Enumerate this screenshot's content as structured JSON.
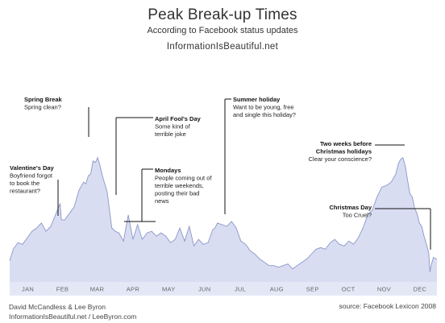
{
  "header": {
    "title": "Peak Break-up Times",
    "subtitle": "According to Facebook status updates",
    "site": "InformationIsBeautiful.net"
  },
  "footer": {
    "authors": "David McCandless & Lee Byron",
    "links": "InformationIsBeautiful.net / LeeByron.com",
    "source": "source: Facebook Lexicon 2008"
  },
  "colors": {
    "area_fill": "#d8ddf2",
    "area_stroke": "#8c96c8",
    "axis_band": "#e4e8f6",
    "annotation_line": "#111111"
  },
  "chart_data": {
    "type": "area",
    "title": "Peak Break-up Times",
    "subtitle": "According to Facebook status updates",
    "xlabel": "",
    "ylabel": "",
    "x_unit": "day of year",
    "xlim": [
      1,
      365
    ],
    "ylim": [
      0,
      100
    ],
    "y_axis_labels_shown": false,
    "grid": false,
    "month_labels": [
      "JAN",
      "FEB",
      "MAR",
      "APR",
      "MAY",
      "JUN",
      "JUL",
      "AUG",
      "SEP",
      "OCT",
      "NOV",
      "DEC"
    ],
    "series": [
      {
        "x": [
          1,
          4,
          8,
          12,
          16,
          20,
          24,
          28,
          32,
          36,
          40,
          44,
          45,
          48,
          52,
          56,
          60,
          64,
          66,
          68,
          70,
          72,
          74,
          76,
          78,
          80,
          84,
          88,
          91,
          94,
          98,
          102,
          106,
          110,
          114,
          118,
          122,
          126,
          130,
          134,
          138,
          142,
          146,
          150,
          154,
          158,
          162,
          166,
          170,
          174,
          176,
          178,
          182,
          186,
          190,
          194,
          198,
          202,
          206,
          210,
          214,
          218,
          222,
          226,
          230,
          234,
          238,
          242,
          246,
          250,
          254,
          258,
          262,
          266,
          270,
          274,
          278,
          282,
          286,
          290,
          294,
          298,
          302,
          306,
          310,
          314,
          318,
          322,
          326,
          330,
          332,
          334,
          336,
          338,
          340,
          342,
          344,
          346,
          348,
          350,
          352,
          354,
          356,
          358,
          359,
          360,
          362,
          365
        ],
        "values": [
          13,
          20,
          24,
          23,
          27,
          31,
          33,
          36,
          31,
          34,
          41,
          48,
          38,
          38,
          42,
          46,
          56,
          61,
          60,
          65,
          66,
          74,
          73,
          76,
          71,
          65,
          55,
          33,
          31,
          30,
          25,
          41,
          26,
          35,
          26,
          30,
          31,
          28,
          30,
          28,
          24,
          26,
          33,
          25,
          34,
          22,
          26,
          23,
          24,
          32,
          33,
          36,
          35,
          34,
          37,
          33,
          25,
          23,
          19,
          17,
          14,
          12,
          10,
          10,
          9,
          10,
          11,
          8,
          10,
          12,
          14,
          17,
          20,
          21,
          20,
          24,
          26,
          23,
          22,
          25,
          23,
          27,
          33,
          41,
          44,
          52,
          58,
          59,
          61,
          66,
          72,
          75,
          76,
          71,
          62,
          54,
          52,
          45,
          42,
          36,
          34,
          28,
          23,
          18,
          6,
          10,
          15,
          14
        ]
      }
    ],
    "annotations": [
      {
        "title": "Valentine's Day",
        "text": [
          "Boyfriend forgot",
          "to book the",
          "restaurant?"
        ]
      },
      {
        "title": "Spring Break",
        "text": [
          "Spring clean?"
        ]
      },
      {
        "title": "April Fool's Day",
        "text": [
          "Some kind of",
          "terrible joke"
        ]
      },
      {
        "title": "Mondays",
        "text": [
          "People coming out of",
          "terrible weekends,",
          "posting their bad",
          "news"
        ]
      },
      {
        "title": "Summer holiday",
        "text": [
          "Want to be young, free",
          "and single this holiday?"
        ]
      },
      {
        "title": "Two weeks before",
        "title2": "Christmas holidays",
        "text": [
          "Clear your conscience?"
        ]
      },
      {
        "title": "Christmas Day",
        "text": [
          "Too Cruel?"
        ]
      }
    ]
  }
}
